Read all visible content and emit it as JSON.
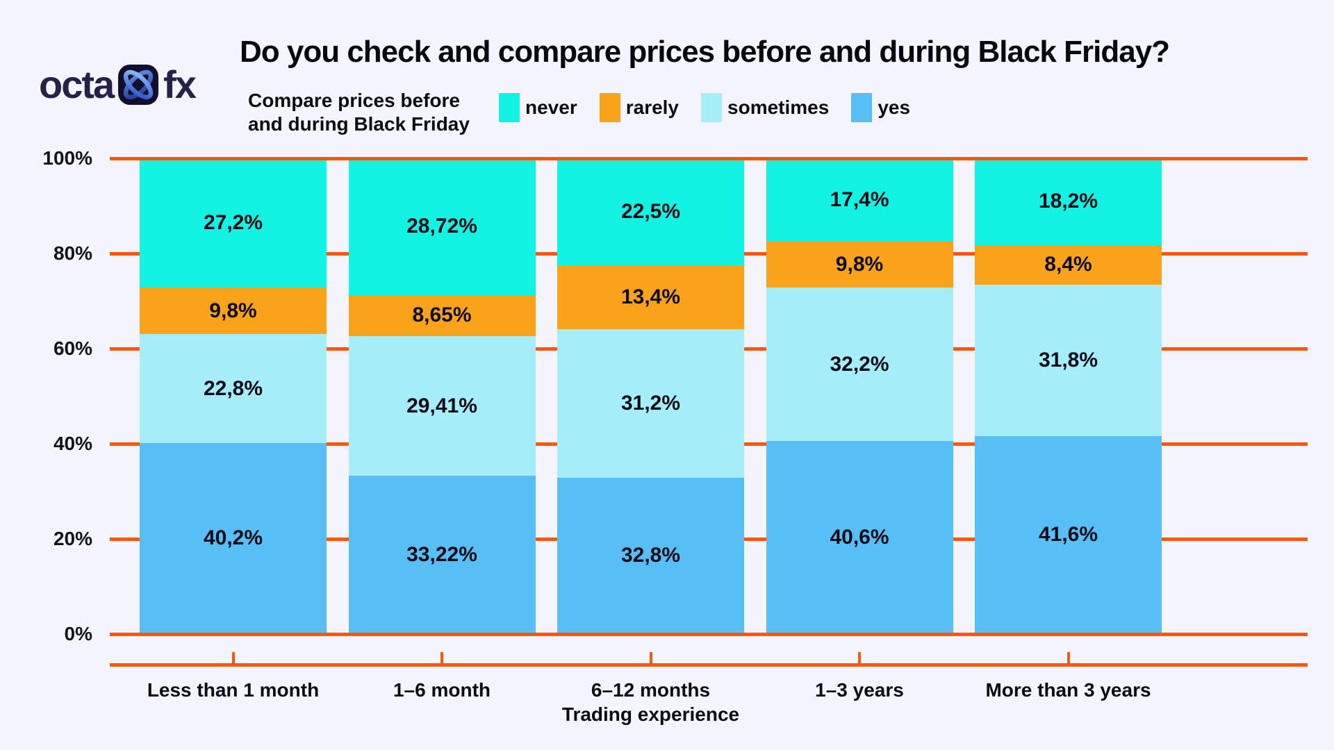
{
  "page": {
    "background": "#F4F4FC",
    "text_color": "#0B0B16"
  },
  "logo": {
    "part1": "octa",
    "part2": "fx"
  },
  "header": {
    "title": "Do you check and compare prices before and during Black Friday?",
    "subtitle_line1": "Compare prices before",
    "subtitle_line2": "and during Black Friday"
  },
  "chart_data": {
    "type": "bar",
    "stacked": true,
    "title": "Do you check and compare prices before and during Black Friday?",
    "subtitle": "Compare prices before and during Black Friday",
    "categories": [
      "Less than 1 month",
      "1–6 month",
      "6–12 months",
      "1–3 years",
      "More than 3 years"
    ],
    "xlabel": "Trading experience",
    "ylabel": "",
    "ylim": [
      0,
      100
    ],
    "y_ticks": [
      {
        "value": 100,
        "label": "100%"
      },
      {
        "value": 80,
        "label": "80%"
      },
      {
        "value": 60,
        "label": "60%"
      },
      {
        "value": 40,
        "label": "40%"
      },
      {
        "value": 20,
        "label": "20%"
      },
      {
        "value": 0,
        "label": "0%"
      }
    ],
    "legend_position": "top",
    "grid": true,
    "grid_color": "#F9570D",
    "series": [
      {
        "name": "never",
        "color": "#12F3E3",
        "values": [
          27.2,
          28.72,
          22.5,
          17.4,
          18.2
        ],
        "labels": [
          "27,2%",
          "28,72%",
          "22,5%",
          "17,4%",
          "18,2%"
        ]
      },
      {
        "name": "rarely",
        "color": "#FBA21B",
        "values": [
          9.8,
          8.65,
          13.4,
          9.8,
          8.4
        ],
        "labels": [
          "9,8%",
          "8,65%",
          "13,4%",
          "9,8%",
          "8,4%"
        ]
      },
      {
        "name": "sometimes",
        "color": "#A5EDF9",
        "values": [
          22.8,
          29.41,
          31.2,
          32.2,
          31.8
        ],
        "labels": [
          "22,8%",
          "29,41%",
          "31,2%",
          "32,2%",
          "31,8%"
        ]
      },
      {
        "name": "yes",
        "color": "#58BEF6",
        "values": [
          40.2,
          33.22,
          32.8,
          40.6,
          41.6
        ],
        "labels": [
          "40,2%",
          "33,22%",
          "32,8%",
          "40,6%",
          "41,6%"
        ]
      }
    ]
  }
}
